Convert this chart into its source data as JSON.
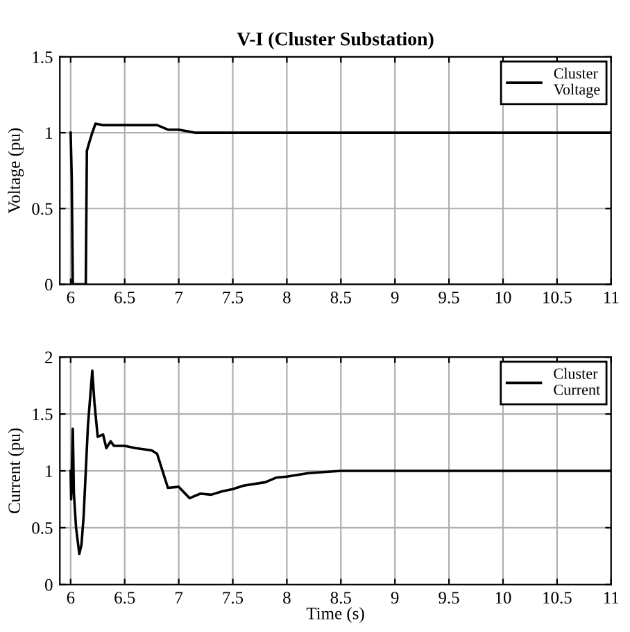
{
  "chart_data": [
    {
      "type": "line",
      "title": "V-I (Cluster Substation)",
      "ylabel": "Voltage (pu)",
      "xlim": [
        5.9,
        11
      ],
      "xticks": [
        6,
        6.5,
        7,
        7.5,
        8,
        8.5,
        9,
        9.5,
        10,
        10.5,
        11
      ],
      "ylim": [
        0,
        1.5
      ],
      "yticks": [
        0,
        0.5,
        1,
        1.5
      ],
      "grid": true,
      "legend": "top right",
      "series": [
        {
          "name": "Cluster\nVoltage",
          "color": "#000000",
          "x": [
            6.0,
            6.01,
            6.02,
            6.14,
            6.15,
            6.17,
            6.2,
            6.23,
            6.3,
            6.8,
            6.9,
            7.0,
            7.15,
            8.7,
            11.0
          ],
          "values": [
            1.0,
            0.7,
            0.0,
            0.0,
            0.88,
            0.93,
            1.0,
            1.06,
            1.05,
            1.05,
            1.02,
            1.02,
            1.0,
            1.0,
            1.0
          ]
        }
      ]
    },
    {
      "type": "line",
      "xlabel": "Time (s)",
      "ylabel": "Current (pu)",
      "xlim": [
        5.9,
        11
      ],
      "xticks": [
        6,
        6.5,
        7,
        7.5,
        8,
        8.5,
        9,
        9.5,
        10,
        10.5,
        11
      ],
      "ylim": [
        0,
        2
      ],
      "yticks": [
        0,
        0.5,
        1,
        1.5,
        2
      ],
      "grid": true,
      "legend": "top right",
      "series": [
        {
          "name": "Cluster\nCurrent",
          "color": "#000000",
          "x": [
            6.0,
            6.005,
            6.02,
            6.03,
            6.05,
            6.08,
            6.1,
            6.12,
            6.16,
            6.2,
            6.22,
            6.25,
            6.3,
            6.33,
            6.37,
            6.4,
            6.5,
            6.6,
            6.75,
            6.8,
            6.85,
            6.9,
            7.0,
            7.1,
            7.2,
            7.3,
            7.4,
            7.5,
            7.6,
            7.8,
            7.9,
            8.0,
            8.2,
            8.5,
            11.0
          ],
          "values": [
            1.0,
            0.75,
            1.37,
            0.8,
            0.5,
            0.27,
            0.35,
            0.6,
            1.4,
            1.88,
            1.6,
            1.3,
            1.32,
            1.2,
            1.26,
            1.22,
            1.22,
            1.2,
            1.18,
            1.15,
            1.0,
            0.85,
            0.86,
            0.76,
            0.8,
            0.79,
            0.82,
            0.84,
            0.87,
            0.9,
            0.94,
            0.95,
            0.98,
            1.0,
            1.0
          ]
        }
      ]
    }
  ]
}
